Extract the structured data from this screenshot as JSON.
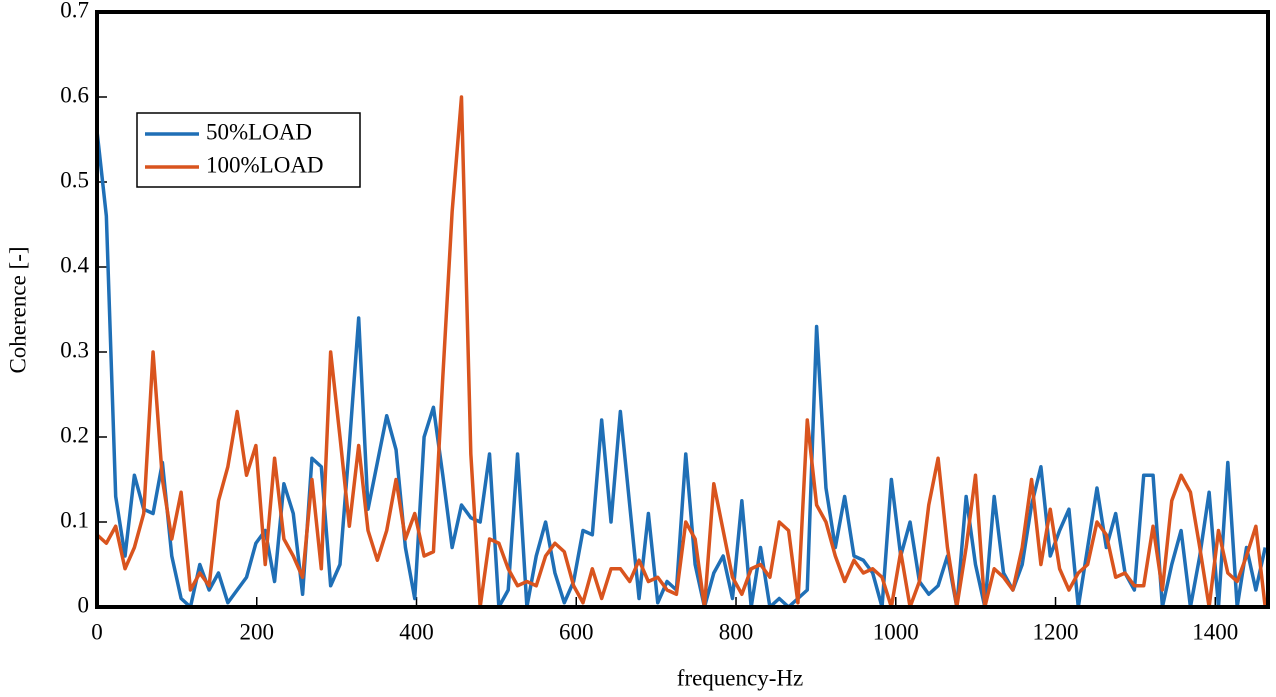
{
  "chart_data": {
    "type": "line",
    "xlabel": "frequency-Hz",
    "ylabel": "Coherence [-]",
    "x": [
      0,
      11.7,
      23.4,
      35.1,
      46.8,
      58.5,
      70.2,
      81.9,
      93.6,
      105.3,
      117,
      128.7,
      140.4,
      152.1,
      163.8,
      175.5,
      187.2,
      198.9,
      210.6,
      222.3,
      234,
      245.7,
      257.4,
      269.1,
      280.8,
      292.5,
      304.2,
      315.9,
      327.6,
      339.3,
      351,
      362.7,
      374.4,
      386.1,
      397.8,
      409.5,
      421.2,
      432.9,
      444.6,
      456.3,
      468,
      479.7,
      491.4,
      503.1,
      514.8,
      526.5,
      538.2,
      549.9,
      561.6,
      573.3,
      585,
      596.7,
      608.4,
      620.1,
      631.8,
      643.5,
      655.2,
      666.9,
      678.6,
      690.3,
      702,
      713.7,
      725.4,
      737.1,
      748.8,
      760.5,
      772.2,
      783.9,
      795.6,
      807.3,
      819,
      830.7,
      842.4,
      854.1,
      865.8,
      877.5,
      889.2,
      900.9,
      912.6,
      924.3,
      936,
      947.7,
      959.4,
      971.1,
      982.8,
      994.5,
      1006.2,
      1017.9,
      1029.6,
      1041.3,
      1053,
      1064.7,
      1076.4,
      1088.1,
      1099.8,
      1111.5,
      1123.2,
      1134.9,
      1146.6,
      1158.3,
      1170,
      1181.7,
      1193.4,
      1205.1,
      1216.8,
      1228.5,
      1240.2,
      1251.9,
      1263.6,
      1275.3,
      1287,
      1298.7,
      1310.4,
      1322.1,
      1333.8,
      1345.5,
      1357.2,
      1368.9,
      1380.6,
      1392.3,
      1404,
      1415.7,
      1427.4,
      1439.1,
      1450.8,
      1462.5
    ],
    "series": [
      {
        "name": "50%LOAD",
        "color": "#1f6fb6",
        "values": [
          0.56,
          0.46,
          0.13,
          0.06,
          0.155,
          0.115,
          0.11,
          0.17,
          0.06,
          0.01,
          0.0,
          0.05,
          0.02,
          0.04,
          0.005,
          0.02,
          0.035,
          0.075,
          0.09,
          0.03,
          0.145,
          0.11,
          0.015,
          0.175,
          0.165,
          0.025,
          0.05,
          0.19,
          0.34,
          0.115,
          0.17,
          0.225,
          0.185,
          0.07,
          0.01,
          0.2,
          0.235,
          0.155,
          0.07,
          0.12,
          0.105,
          0.1,
          0.18,
          0.0,
          0.02,
          0.18,
          0.0,
          0.06,
          0.1,
          0.04,
          0.005,
          0.03,
          0.09,
          0.085,
          0.22,
          0.1,
          0.23,
          0.12,
          0.01,
          0.11,
          0.005,
          0.03,
          0.02,
          0.18,
          0.05,
          0.0,
          0.04,
          0.06,
          0.01,
          0.125,
          0.0,
          0.07,
          0.0,
          0.01,
          0.0,
          0.01,
          0.02,
          0.33,
          0.14,
          0.07,
          0.13,
          0.06,
          0.055,
          0.04,
          0.0,
          0.15,
          0.06,
          0.1,
          0.03,
          0.015,
          0.025,
          0.06,
          0.0,
          0.13,
          0.05,
          0.0,
          0.13,
          0.04,
          0.02,
          0.05,
          0.12,
          0.165,
          0.06,
          0.09,
          0.115,
          0.0,
          0.07,
          0.14,
          0.07,
          0.11,
          0.04,
          0.02,
          0.155,
          0.155,
          0.0,
          0.05,
          0.09,
          0.0,
          0.06,
          0.135,
          0.0,
          0.17,
          0.0,
          0.07,
          0.02,
          0.07
        ]
      },
      {
        "name": "100%LOAD",
        "color": "#d9541e",
        "values": [
          0.085,
          0.075,
          0.095,
          0.045,
          0.07,
          0.11,
          0.3,
          0.15,
          0.08,
          0.135,
          0.02,
          0.04,
          0.025,
          0.125,
          0.165,
          0.23,
          0.155,
          0.19,
          0.05,
          0.175,
          0.08,
          0.06,
          0.035,
          0.15,
          0.045,
          0.3,
          0.2,
          0.095,
          0.19,
          0.09,
          0.055,
          0.09,
          0.15,
          0.08,
          0.11,
          0.06,
          0.065,
          0.27,
          0.465,
          0.6,
          0.18,
          0.0,
          0.08,
          0.075,
          0.045,
          0.025,
          0.03,
          0.025,
          0.06,
          0.075,
          0.065,
          0.025,
          0.005,
          0.045,
          0.01,
          0.045,
          0.045,
          0.03,
          0.055,
          0.03,
          0.035,
          0.02,
          0.015,
          0.1,
          0.08,
          0.0,
          0.145,
          0.09,
          0.035,
          0.015,
          0.045,
          0.05,
          0.035,
          0.1,
          0.09,
          0.005,
          0.22,
          0.12,
          0.1,
          0.06,
          0.03,
          0.055,
          0.04,
          0.045,
          0.035,
          0.0,
          0.065,
          0.0,
          0.03,
          0.12,
          0.175,
          0.07,
          0.0,
          0.07,
          0.155,
          0.0,
          0.045,
          0.035,
          0.02,
          0.07,
          0.15,
          0.05,
          0.115,
          0.045,
          0.02,
          0.04,
          0.05,
          0.1,
          0.085,
          0.035,
          0.04,
          0.025,
          0.025,
          0.095,
          0.02,
          0.125,
          0.155,
          0.135,
          0.07,
          0.0,
          0.09,
          0.04,
          0.03,
          0.06,
          0.095,
          0.0
        ]
      }
    ],
    "xlim": [
      0,
      1466
    ],
    "xticks": [
      0,
      200,
      400,
      600,
      800,
      1000,
      1200,
      1400
    ],
    "ylim": [
      0,
      0.7
    ],
    "yticks": [
      0,
      0.1,
      0.2,
      0.3,
      0.4,
      0.5,
      0.6,
      0.7
    ],
    "legend": "upper left",
    "grid": false
  }
}
